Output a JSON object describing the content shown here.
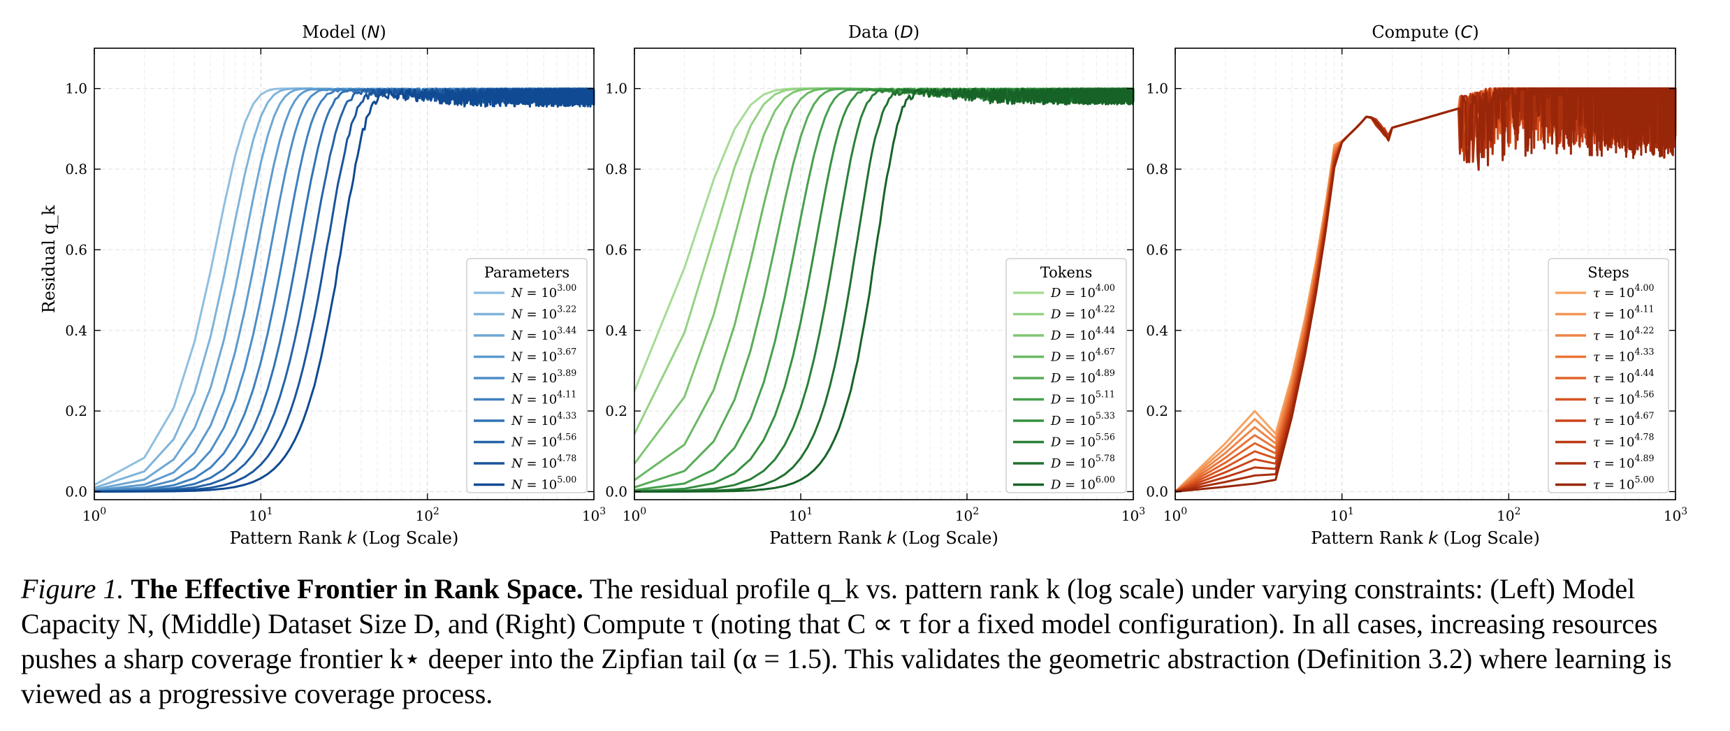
{
  "chart_data": [
    {
      "type": "line",
      "title": "Model (N)",
      "xlabel": "Pattern Rank k (Log Scale)",
      "ylabel": "Residual q_k",
      "xscale": "log",
      "xlim": [
        1,
        1000
      ],
      "ylim": [
        -0.02,
        1.1
      ],
      "x_ticks": [
        "10^0",
        "10^1",
        "10^2",
        "10^3"
      ],
      "y_ticks": [
        "0.0",
        "0.2",
        "0.4",
        "0.6",
        "0.8",
        "1.0"
      ],
      "grid": true,
      "legend": {
        "title": "Parameters",
        "placement": "lower-right"
      },
      "model": {
        "form": "1 - exp(-(k/k_star)^p)",
        "noise_onset_k": 20
      },
      "series": [
        {
          "name": "N = 10^3.00",
          "k_star": 5.5,
          "p": 2.4,
          "noise": 0.004,
          "color": "#8fbfdf"
        },
        {
          "name": "N = 10^3.22",
          "k_star": 6.7,
          "p": 2.45,
          "noise": 0.005,
          "color": "#7fb3da"
        },
        {
          "name": "N = 10^3.44",
          "k_star": 8.1,
          "p": 2.5,
          "noise": 0.006,
          "color": "#6ea7d3"
        },
        {
          "name": "N = 10^3.67",
          "k_star": 9.8,
          "p": 2.55,
          "noise": 0.007,
          "color": "#5c9ace"
        },
        {
          "name": "N = 10^3.89",
          "k_star": 11.8,
          "p": 2.6,
          "noise": 0.008,
          "color": "#4d8ec6"
        },
        {
          "name": "N = 10^4.11",
          "k_star": 14.3,
          "p": 2.65,
          "noise": 0.009,
          "color": "#3f80bf"
        },
        {
          "name": "N = 10^4.33",
          "k_star": 17.3,
          "p": 2.7,
          "noise": 0.01,
          "color": "#3172b4"
        },
        {
          "name": "N = 10^4.56",
          "k_star": 21.0,
          "p": 2.75,
          "noise": 0.012,
          "color": "#2563a8"
        },
        {
          "name": "N = 10^4.78",
          "k_star": 25.5,
          "p": 2.85,
          "noise": 0.014,
          "color": "#1a559c"
        },
        {
          "name": "N = 10^5.00",
          "k_star": 31.0,
          "p": 3.0,
          "noise": 0.016,
          "color": "#0f4a92"
        }
      ]
    },
    {
      "type": "line",
      "title": "Data (D)",
      "xlabel": "Pattern Rank k (Log Scale)",
      "ylabel": "",
      "xscale": "log",
      "xlim": [
        1,
        1000
      ],
      "ylim": [
        -0.02,
        1.1
      ],
      "x_ticks": [
        "10^0",
        "10^1",
        "10^2",
        "10^3"
      ],
      "y_ticks": [
        "0.0",
        "0.2",
        "0.4",
        "0.6",
        "0.8",
        "1.0"
      ],
      "grid": true,
      "legend": {
        "title": "Tokens",
        "placement": "lower-right"
      },
      "model": {
        "form": "1 - exp(-(k/k_star)^p)",
        "noise_onset_k": 8
      },
      "series": [
        {
          "name": "D = 10^4.00",
          "k_star": 2.3,
          "p": 1.5,
          "noise": 0.005,
          "color": "#a6dc94"
        },
        {
          "name": "D = 10^4.22",
          "k_star": 3.0,
          "p": 1.7,
          "noise": 0.006,
          "color": "#94d283"
        },
        {
          "name": "D = 10^4.44",
          "k_star": 4.0,
          "p": 1.9,
          "noise": 0.007,
          "color": "#80c673"
        },
        {
          "name": "D = 10^4.67",
          "k_star": 5.4,
          "p": 2.1,
          "noise": 0.008,
          "color": "#6cb964"
        },
        {
          "name": "D = 10^4.89",
          "k_star": 7.2,
          "p": 2.3,
          "noise": 0.009,
          "color": "#58ac57"
        },
        {
          "name": "D = 10^5.11",
          "k_star": 9.5,
          "p": 2.5,
          "noise": 0.01,
          "color": "#46a04c"
        },
        {
          "name": "D = 10^5.33",
          "k_star": 12.5,
          "p": 2.7,
          "noise": 0.011,
          "color": "#379040"
        },
        {
          "name": "D = 10^5.56",
          "k_star": 16.5,
          "p": 2.9,
          "noise": 0.012,
          "color": "#2a8037"
        },
        {
          "name": "D = 10^5.78",
          "k_star": 22.0,
          "p": 3.1,
          "noise": 0.013,
          "color": "#20712f"
        },
        {
          "name": "D = 10^6.00",
          "k_star": 29.0,
          "p": 3.3,
          "noise": 0.014,
          "color": "#176327"
        }
      ]
    },
    {
      "type": "line",
      "title": "Compute (C)",
      "xlabel": "Pattern Rank k (Log Scale)",
      "ylabel": "",
      "xscale": "log",
      "xlim": [
        1,
        1000
      ],
      "ylim": [
        -0.02,
        1.1
      ],
      "x_ticks": [
        "10^0",
        "10^1",
        "10^2",
        "10^3"
      ],
      "y_ticks": [
        "0.0",
        "0.2",
        "0.4",
        "0.6",
        "0.8",
        "1.0"
      ],
      "grid": true,
      "legend": {
        "title": "Steps",
        "placement": "lower-right"
      },
      "model": {
        "form": "piecewise",
        "noise_onset_k": 50
      },
      "series": [
        {
          "name": "τ = 10^4.00",
          "shift": 0.0,
          "noise": 0.06,
          "color": "#f5a462"
        },
        {
          "name": "τ = 10^4.11",
          "shift": 0.1,
          "noise": 0.065,
          "color": "#f29455"
        },
        {
          "name": "τ = 10^4.22",
          "shift": 0.2,
          "noise": 0.07,
          "color": "#ee8446"
        },
        {
          "name": "τ = 10^4.33",
          "shift": 0.3,
          "noise": 0.075,
          "color": "#e97437"
        },
        {
          "name": "τ = 10^4.44",
          "shift": 0.4,
          "noise": 0.08,
          "color": "#e2632a"
        },
        {
          "name": "τ = 10^4.56",
          "shift": 0.5,
          "noise": 0.085,
          "color": "#d8531f"
        },
        {
          "name": "τ = 10^4.67",
          "shift": 0.6,
          "noise": 0.09,
          "color": "#cb4518"
        },
        {
          "name": "τ = 10^4.78",
          "shift": 0.7,
          "noise": 0.095,
          "color": "#bb3912"
        },
        {
          "name": "τ = 10^4.89",
          "shift": 0.8,
          "noise": 0.1,
          "color": "#aa2f0d"
        },
        {
          "name": "τ = 10^5.00",
          "shift": 0.9,
          "noise": 0.11,
          "color": "#982609"
        }
      ]
    }
  ],
  "caption": {
    "label": "Figure 1.",
    "title": "The Effective Frontier in Rank Space.",
    "text": "The residual profile q_k vs. pattern rank k (log scale) under varying constraints: (Left) Model Capacity N, (Middle) Dataset Size D, and (Right) Compute τ (noting that C ∝ τ for a fixed model configuration). In all cases, increasing resources pushes a sharp coverage frontier k⋆ deeper into the Zipfian tail (α = 1.5). This validates the geometric abstraction (Definition 3.2) where learning is viewed as a progressive coverage process."
  }
}
